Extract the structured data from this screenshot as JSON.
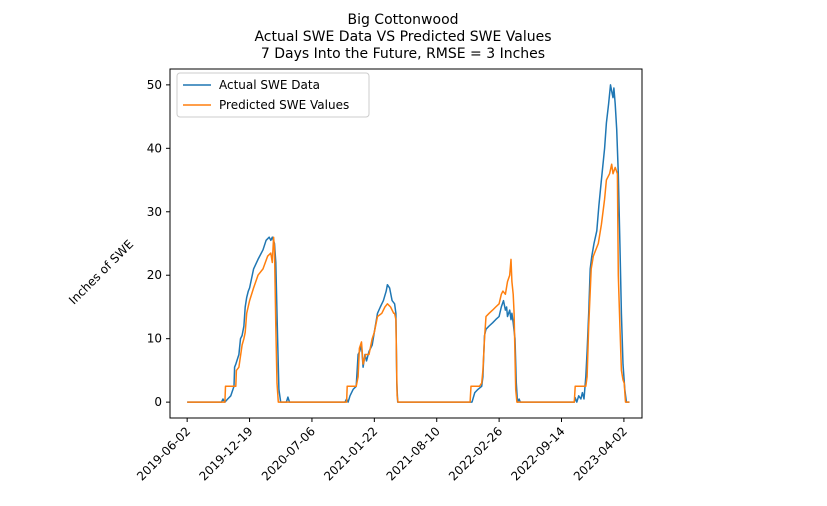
{
  "chart_data": {
    "type": "line",
    "title": [
      "Big Cottonwood",
      "Actual SWE Data VS Predicted SWE Values",
      "7 Days Into the Future, RMSE = 3 Inches"
    ],
    "xlabel": "",
    "ylabel": "Inches of SWE",
    "x_ticks": [
      "2019-06-02",
      "2019-12-19",
      "2020-07-06",
      "2021-01-22",
      "2021-08-10",
      "2022-02-26",
      "2022-09-14",
      "2023-04-02"
    ],
    "x_range": [
      "2019-04-08",
      "2023-05-30"
    ],
    "ylim": [
      -2.5,
      52.5
    ],
    "y_ticks": [
      0,
      10,
      20,
      30,
      40,
      50
    ],
    "legend_position": "top-left",
    "colors": {
      "actual": "#1f77b4",
      "predicted": "#ff7f0e"
    },
    "series": [
      {
        "name": "Actual SWE Data",
        "points": [
          [
            "2019-06-02",
            0
          ],
          [
            "2019-09-20",
            0
          ],
          [
            "2019-09-25",
            0.5
          ],
          [
            "2019-10-01",
            0
          ],
          [
            "2019-10-10",
            0.5
          ],
          [
            "2019-10-20",
            1
          ],
          [
            "2019-10-30",
            2.5
          ],
          [
            "2019-11-01",
            5.5
          ],
          [
            "2019-11-05",
            6
          ],
          [
            "2019-11-15",
            7.5
          ],
          [
            "2019-11-20",
            10
          ],
          [
            "2019-11-25",
            10.5
          ],
          [
            "2019-12-01",
            12
          ],
          [
            "2019-12-05",
            15
          ],
          [
            "2019-12-10",
            16.5
          ],
          [
            "2019-12-15",
            17.5
          ],
          [
            "2019-12-19",
            18
          ],
          [
            "2020-01-01",
            21
          ],
          [
            "2020-01-15",
            22.5
          ],
          [
            "2020-01-31",
            24
          ],
          [
            "2020-02-10",
            25.5
          ],
          [
            "2020-02-20",
            26
          ],
          [
            "2020-02-25",
            25.5
          ],
          [
            "2020-03-01",
            26
          ],
          [
            "2020-03-08",
            25
          ],
          [
            "2020-03-12",
            22
          ],
          [
            "2020-03-18",
            10
          ],
          [
            "2020-03-22",
            2
          ],
          [
            "2020-03-28",
            0
          ],
          [
            "2020-04-15",
            0
          ],
          [
            "2020-04-20",
            0.8
          ],
          [
            "2020-04-25",
            0
          ],
          [
            "2020-10-20",
            0
          ],
          [
            "2020-10-25",
            0.5
          ],
          [
            "2020-10-30",
            0
          ],
          [
            "2020-11-05",
            1
          ],
          [
            "2020-11-15",
            2
          ],
          [
            "2020-11-25",
            2.5
          ],
          [
            "2020-12-01",
            7.5
          ],
          [
            "2020-12-06",
            8
          ],
          [
            "2020-12-12",
            9
          ],
          [
            "2020-12-17",
            5.5
          ],
          [
            "2020-12-23",
            7.5
          ],
          [
            "2020-12-28",
            6.5
          ],
          [
            "2021-01-05",
            8
          ],
          [
            "2021-01-15",
            9
          ],
          [
            "2021-01-22",
            11
          ],
          [
            "2021-02-01",
            14
          ],
          [
            "2021-02-10",
            15
          ],
          [
            "2021-02-20",
            16
          ],
          [
            "2021-03-01",
            17.5
          ],
          [
            "2021-03-05",
            18.5
          ],
          [
            "2021-03-12",
            18
          ],
          [
            "2021-03-20",
            16
          ],
          [
            "2021-03-28",
            15.5
          ],
          [
            "2021-04-01",
            14
          ],
          [
            "2021-04-04",
            3
          ],
          [
            "2021-04-07",
            0
          ],
          [
            "2021-12-01",
            0
          ],
          [
            "2021-12-10",
            1.5
          ],
          [
            "2021-12-20",
            2
          ],
          [
            "2022-01-01",
            2.5
          ],
          [
            "2022-01-05",
            4
          ],
          [
            "2022-01-10",
            10.5
          ],
          [
            "2022-01-15",
            11.5
          ],
          [
            "2022-01-25",
            12
          ],
          [
            "2022-02-05",
            12.5
          ],
          [
            "2022-02-15",
            13
          ],
          [
            "2022-02-26",
            13.5
          ],
          [
            "2022-03-05",
            15
          ],
          [
            "2022-03-12",
            16
          ],
          [
            "2022-03-18",
            14.5
          ],
          [
            "2022-03-22",
            15
          ],
          [
            "2022-03-25",
            13.5
          ],
          [
            "2022-04-01",
            14.5
          ],
          [
            "2022-04-05",
            13
          ],
          [
            "2022-04-08",
            14
          ],
          [
            "2022-04-12",
            12.5
          ],
          [
            "2022-04-18",
            10
          ],
          [
            "2022-04-22",
            3
          ],
          [
            "2022-04-26",
            0
          ],
          [
            "2022-05-01",
            0.5
          ],
          [
            "2022-05-05",
            0
          ],
          [
            "2022-10-25",
            0
          ],
          [
            "2022-10-28",
            0.7
          ],
          [
            "2022-11-02",
            0
          ],
          [
            "2022-11-08",
            1
          ],
          [
            "2022-11-15",
            0.5
          ],
          [
            "2022-11-20",
            1.5
          ],
          [
            "2022-11-25",
            0.5
          ],
          [
            "2022-12-01",
            4
          ],
          [
            "2022-12-05",
            8
          ],
          [
            "2022-12-10",
            14
          ],
          [
            "2022-12-15",
            21
          ],
          [
            "2022-12-20",
            23
          ],
          [
            "2022-12-27",
            25
          ],
          [
            "2023-01-05",
            27
          ],
          [
            "2023-01-12",
            31
          ],
          [
            "2023-01-20",
            35
          ],
          [
            "2023-01-30",
            40
          ],
          [
            "2023-02-05",
            44
          ],
          [
            "2023-02-12",
            47
          ],
          [
            "2023-02-18",
            50
          ],
          [
            "2023-02-22",
            49
          ],
          [
            "2023-02-26",
            48
          ],
          [
            "2023-03-01",
            49.5
          ],
          [
            "2023-03-05",
            47
          ],
          [
            "2023-03-10",
            43
          ],
          [
            "2023-03-15",
            36
          ],
          [
            "2023-03-20",
            25
          ],
          [
            "2023-03-25",
            14
          ],
          [
            "2023-03-30",
            6
          ],
          [
            "2023-04-05",
            2
          ],
          [
            "2023-04-10",
            0
          ],
          [
            "2023-04-20",
            0
          ]
        ]
      },
      {
        "name": "Predicted SWE Values",
        "points": [
          [
            "2019-06-02",
            0
          ],
          [
            "2019-10-01",
            0
          ],
          [
            "2019-10-03",
            2.5
          ],
          [
            "2019-11-05",
            2.5
          ],
          [
            "2019-11-07",
            5
          ],
          [
            "2019-11-15",
            5.5
          ],
          [
            "2019-11-25",
            9
          ],
          [
            "2019-12-01",
            10
          ],
          [
            "2019-12-05",
            11
          ],
          [
            "2019-12-10",
            14
          ],
          [
            "2019-12-19",
            16
          ],
          [
            "2020-01-01",
            18
          ],
          [
            "2020-01-15",
            20
          ],
          [
            "2020-01-31",
            21
          ],
          [
            "2020-02-15",
            23
          ],
          [
            "2020-02-25",
            23.5
          ],
          [
            "2020-03-01",
            22
          ],
          [
            "2020-03-05",
            26
          ],
          [
            "2020-03-08",
            24
          ],
          [
            "2020-03-12",
            12
          ],
          [
            "2020-03-16",
            3
          ],
          [
            "2020-03-20",
            0
          ],
          [
            "2020-10-25",
            0
          ],
          [
            "2020-10-27",
            2.5
          ],
          [
            "2020-11-25",
            2.5
          ],
          [
            "2020-12-01",
            4
          ],
          [
            "2020-12-05",
            8.5
          ],
          [
            "2020-12-12",
            9.5
          ],
          [
            "2020-12-17",
            6
          ],
          [
            "2020-12-25",
            7.5
          ],
          [
            "2021-01-05",
            7.5
          ],
          [
            "2021-01-15",
            10
          ],
          [
            "2021-01-22",
            11
          ],
          [
            "2021-02-01",
            13.5
          ],
          [
            "2021-02-15",
            14
          ],
          [
            "2021-02-25",
            15
          ],
          [
            "2021-03-05",
            15.5
          ],
          [
            "2021-03-15",
            15
          ],
          [
            "2021-03-25",
            14
          ],
          [
            "2021-03-28",
            14
          ],
          [
            "2021-04-01",
            13
          ],
          [
            "2021-04-05",
            1
          ],
          [
            "2021-04-08",
            0
          ],
          [
            "2021-11-25",
            0
          ],
          [
            "2021-11-28",
            2.5
          ],
          [
            "2021-12-25",
            2.5
          ],
          [
            "2022-01-01",
            3
          ],
          [
            "2022-01-05",
            5
          ],
          [
            "2022-01-10",
            10
          ],
          [
            "2022-01-15",
            13.5
          ],
          [
            "2022-01-25",
            14
          ],
          [
            "2022-02-05",
            14.5
          ],
          [
            "2022-02-15",
            15
          ],
          [
            "2022-02-26",
            15.5
          ],
          [
            "2022-03-05",
            17
          ],
          [
            "2022-03-10",
            17.5
          ],
          [
            "2022-03-18",
            17
          ],
          [
            "2022-03-25",
            19
          ],
          [
            "2022-04-01",
            20
          ],
          [
            "2022-04-05",
            22.5
          ],
          [
            "2022-04-08",
            19
          ],
          [
            "2022-04-12",
            17
          ],
          [
            "2022-04-15",
            14
          ],
          [
            "2022-04-20",
            2
          ],
          [
            "2022-04-24",
            0
          ],
          [
            "2022-10-25",
            0
          ],
          [
            "2022-10-28",
            2.5
          ],
          [
            "2022-12-01",
            2.5
          ],
          [
            "2022-12-05",
            4
          ],
          [
            "2022-12-10",
            12
          ],
          [
            "2022-12-18",
            21
          ],
          [
            "2022-12-25",
            23
          ],
          [
            "2023-01-10",
            25
          ],
          [
            "2023-01-20",
            28
          ],
          [
            "2023-01-30",
            32
          ],
          [
            "2023-02-05",
            35
          ],
          [
            "2023-02-15",
            36
          ],
          [
            "2023-02-22",
            37.5
          ],
          [
            "2023-02-26",
            36
          ],
          [
            "2023-03-05",
            37
          ],
          [
            "2023-03-12",
            36
          ],
          [
            "2023-03-15",
            20
          ],
          [
            "2023-03-20",
            12
          ],
          [
            "2023-03-25",
            5
          ],
          [
            "2023-03-30",
            3.5
          ],
          [
            "2023-04-03",
            3
          ],
          [
            "2023-04-07",
            0
          ],
          [
            "2023-04-20",
            0
          ]
        ]
      }
    ]
  }
}
